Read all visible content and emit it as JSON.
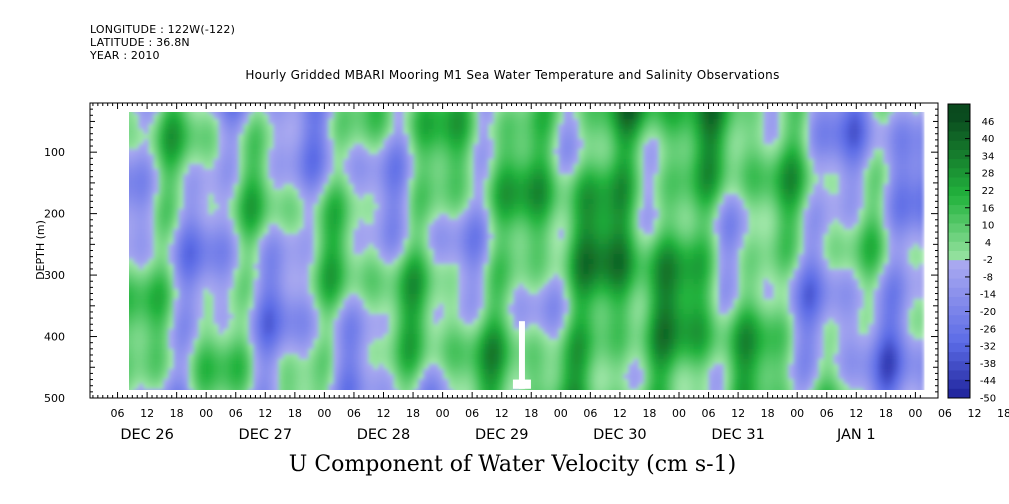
{
  "header": {
    "longitude": "LONGITUDE : 122W(-122)",
    "latitude": "LATITUDE : 36.8N",
    "year": "YEAR : 2010"
  },
  "chart_data": {
    "type": "heatmap",
    "title": "Hourly Gridded MBARI Mooring M1 Sea Water Temperature and Salinity Observations",
    "xlabel": "U Component of Water Velocity (cm s-1)",
    "ylabel": "DEPTH (m)",
    "ylim": [
      500,
      20
    ],
    "y_ticks": [
      100,
      200,
      300,
      400,
      500
    ],
    "x_hour_ticks": [
      "06",
      "12",
      "18",
      "00",
      "06",
      "12",
      "18",
      "00",
      "06",
      "12",
      "18",
      "00",
      "06",
      "12",
      "18",
      "00",
      "06",
      "12",
      "18",
      "00",
      "06",
      "12",
      "18",
      "00",
      "06",
      "12",
      "18",
      "00",
      "06",
      "12",
      "18",
      "00"
    ],
    "x_day_labels": [
      "DEC 26",
      "DEC 27",
      "DEC 28",
      "DEC 29",
      "DEC 30",
      "DEC 31",
      "JAN  1"
    ],
    "data_extent": {
      "time_start": "2010-12-26 07:00",
      "time_end": "2011-01-02 00:00",
      "depth_top": 20,
      "depth_bottom": 485
    },
    "colorbar": {
      "levels": [
        46,
        40,
        34,
        28,
        22,
        16,
        10,
        4,
        -2,
        -8,
        -14,
        -20,
        -26,
        -32,
        -38,
        -44,
        -50
      ],
      "colors": {
        "strong_positive": "#0a4a1e",
        "moderate_positive": "#22b33d",
        "weak_positive": "#9fe6a8",
        "weak_negative": "#a9a9f0",
        "moderate_negative": "#5b6be6",
        "strong_negative": "#0a0a80"
      }
    },
    "grid": false,
    "daily_mean_u": [
      {
        "day": "DEC 26",
        "u": 1
      },
      {
        "day": "DEC 27",
        "u": -2
      },
      {
        "day": "DEC 28",
        "u": 4
      },
      {
        "day": "DEC 29",
        "u": 7
      },
      {
        "day": "DEC 30",
        "u": 22
      },
      {
        "day": "DEC 31",
        "u": 10
      },
      {
        "day": "JAN  1",
        "u": -6
      }
    ]
  }
}
